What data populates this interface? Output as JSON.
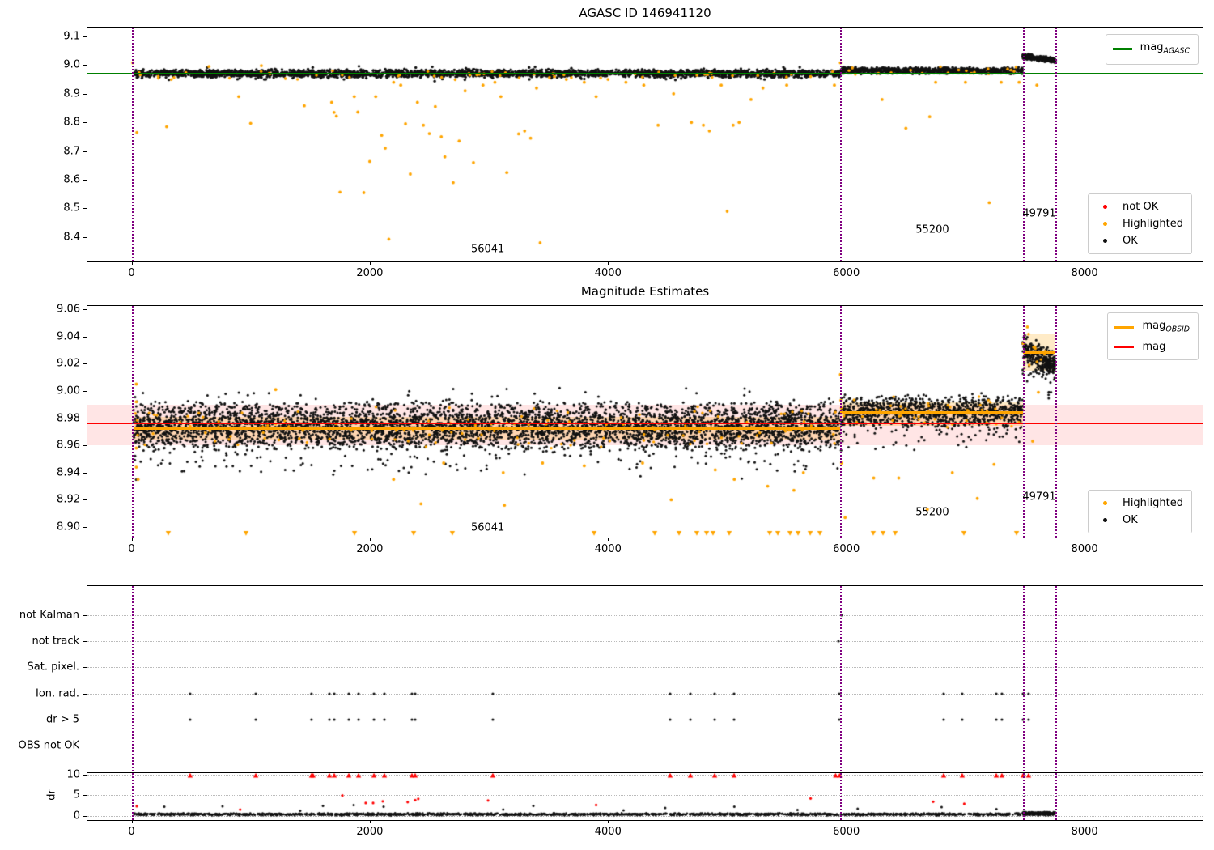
{
  "colors": {
    "ok": "#111111",
    "highlighted": "#FFA500",
    "not_ok": "#FF0000",
    "mag_agasc_line": "#008000",
    "mag_line": "#FF0000",
    "mag_obsid_line": "#FFA500",
    "obsid_boundary_line": "#800080",
    "mag_band_fill": "rgba(255,0,0,0.10)",
    "obsid_band_fill": "rgba(255,165,0,0.22)",
    "grid": "#BBBBBB",
    "separator": "#000000"
  },
  "obsid_boundaries": [
    0,
    5950,
    7480,
    7755
  ],
  "chart_data": [
    {
      "type": "scatter",
      "title": "AGASC ID 146941120",
      "xlim": [
        -370,
        8991
      ],
      "ylim": [
        8.315,
        9.131
      ],
      "xticks": [
        0,
        2000,
        4000,
        6000,
        8000
      ],
      "yticks": [
        9.1,
        9.0,
        8.9,
        8.8,
        8.7,
        8.6,
        8.5,
        8.4
      ],
      "mag_agasc": 8.971,
      "legend_line": {
        "items": [
          {
            "marker": "line",
            "color": "#008000",
            "main": "mag",
            "sub": "AGASC"
          }
        ]
      },
      "legend_points": {
        "items": [
          {
            "marker": "dot",
            "color": "#FF0000",
            "main": "not OK",
            "sub": ""
          },
          {
            "marker": "dot",
            "color": "#FFA500",
            "main": "Highlighted",
            "sub": ""
          },
          {
            "marker": "dot",
            "color": "#111111",
            "main": "OK",
            "sub": ""
          }
        ]
      },
      "annotations": [
        {
          "text": "56041",
          "x": 2990,
          "y": 8.357
        },
        {
          "text": "55200",
          "x": 6722,
          "y": 8.425
        },
        {
          "text": "49791",
          "x": 7619,
          "y": 8.482
        }
      ],
      "ok_bands": [
        {
          "x0": 15,
          "x1": 5950,
          "n": 2400,
          "y": 8.9705,
          "spread": 0.015,
          "slope": 0
        },
        {
          "x0": 15,
          "x1": 5950,
          "n": 260,
          "y": 8.9705,
          "spread": 0.027,
          "slope": 0
        },
        {
          "x0": 5950,
          "x1": 7480,
          "n": 760,
          "y": 8.981,
          "spread": 0.013,
          "slope": 0
        },
        {
          "x0": 7480,
          "x1": 7755,
          "n": 240,
          "y": 9.031,
          "spread": 0.011,
          "slope": -0.014
        }
      ],
      "highlighted_bands": [
        {
          "x0": 15,
          "x1": 5950,
          "n": 55,
          "y": 8.967,
          "spread": 0.022,
          "slope": 0
        },
        {
          "x0": 5950,
          "x1": 7480,
          "n": 18,
          "y": 8.978,
          "spread": 0.02,
          "slope": 0
        }
      ],
      "highlighted_points": [
        [
          10,
          9.008
        ],
        [
          45,
          8.765
        ],
        [
          295,
          8.785
        ],
        [
          650,
          8.995
        ],
        [
          900,
          8.89
        ],
        [
          1000,
          8.797
        ],
        [
          1090,
          8.998
        ],
        [
          1450,
          8.858
        ],
        [
          1680,
          8.87
        ],
        [
          1700,
          8.835
        ],
        [
          1720,
          8.822
        ],
        [
          1750,
          8.557
        ],
        [
          1870,
          8.89
        ],
        [
          1900,
          8.836
        ],
        [
          1950,
          8.555
        ],
        [
          2000,
          8.664
        ],
        [
          2050,
          8.89
        ],
        [
          2100,
          8.755
        ],
        [
          2130,
          8.71
        ],
        [
          2160,
          8.393
        ],
        [
          2200,
          8.94
        ],
        [
          2260,
          8.93
        ],
        [
          2300,
          8.795
        ],
        [
          2340,
          8.62
        ],
        [
          2400,
          8.87
        ],
        [
          2450,
          8.79
        ],
        [
          2500,
          8.761
        ],
        [
          2550,
          8.855
        ],
        [
          2600,
          8.75
        ],
        [
          2630,
          8.68
        ],
        [
          2700,
          8.59
        ],
        [
          2750,
          8.735
        ],
        [
          2800,
          8.91
        ],
        [
          2870,
          8.66
        ],
        [
          2950,
          8.93
        ],
        [
          3050,
          8.94
        ],
        [
          3100,
          8.89
        ],
        [
          3150,
          8.625
        ],
        [
          3250,
          8.76
        ],
        [
          3300,
          8.77
        ],
        [
          3350,
          8.745
        ],
        [
          3400,
          8.92
        ],
        [
          3430,
          8.38
        ],
        [
          3550,
          8.96
        ],
        [
          3650,
          8.95
        ],
        [
          3800,
          8.94
        ],
        [
          3900,
          8.89
        ],
        [
          4000,
          8.95
        ],
        [
          4150,
          8.94
        ],
        [
          4300,
          8.93
        ],
        [
          4420,
          8.79
        ],
        [
          4550,
          8.9
        ],
        [
          4700,
          8.8
        ],
        [
          4800,
          8.79
        ],
        [
          4850,
          8.77
        ],
        [
          4950,
          8.93
        ],
        [
          5000,
          8.49
        ],
        [
          5050,
          8.79
        ],
        [
          5100,
          8.8
        ],
        [
          5200,
          8.88
        ],
        [
          5300,
          8.92
        ],
        [
          5500,
          8.93
        ],
        [
          5700,
          8.96
        ],
        [
          5900,
          8.93
        ],
        [
          5950,
          9.008
        ],
        [
          6050,
          8.99
        ],
        [
          6300,
          8.88
        ],
        [
          6500,
          8.78
        ],
        [
          6700,
          8.82
        ],
        [
          6750,
          8.94
        ],
        [
          7000,
          8.94
        ],
        [
          7200,
          8.52
        ],
        [
          7300,
          8.94
        ],
        [
          7450,
          8.94
        ],
        [
          7600,
          8.93
        ]
      ],
      "not_ok_points": []
    },
    {
      "type": "scatter",
      "title": "Magnitude Estimates",
      "xlim": [
        -370,
        8991
      ],
      "ylim": [
        8.8923,
        9.0624
      ],
      "xticks": [
        0,
        2000,
        4000,
        6000,
        8000
      ],
      "yticks": [
        9.06,
        9.04,
        9.02,
        9.0,
        8.98,
        8.96,
        8.94,
        8.92,
        8.9
      ],
      "mag": 8.976,
      "mag_band": [
        8.96,
        8.99
      ],
      "obsid_segments": [
        {
          "x0": 15,
          "x1": 5950,
          "mag": 8.972,
          "band": [
            8.9635,
            8.981
          ]
        },
        {
          "x0": 5950,
          "x1": 7480,
          "mag": 8.984,
          "band": [
            8.9745,
            8.9915
          ]
        },
        {
          "x0": 7480,
          "x1": 7755,
          "mag": 9.028,
          "band": [
            9.015,
            9.042
          ]
        }
      ],
      "legend_line": {
        "items": [
          {
            "marker": "line",
            "color": "#FFA500",
            "main": "mag",
            "sub": "OBSID"
          },
          {
            "marker": "line",
            "color": "#FF0000",
            "main": "mag",
            "sub": ""
          }
        ]
      },
      "legend_points": {
        "items": [
          {
            "marker": "dot",
            "color": "#FFA500",
            "main": "Highlighted",
            "sub": ""
          },
          {
            "marker": "dot",
            "color": "#111111",
            "main": "OK",
            "sub": ""
          }
        ]
      },
      "annotations": [
        {
          "text": "56041",
          "x": 2990,
          "y": 8.8994
        },
        {
          "text": "55200",
          "x": 6722,
          "y": 8.9107
        },
        {
          "text": "49791",
          "x": 7619,
          "y": 8.922
        }
      ],
      "ok_bands": [
        {
          "x0": 15,
          "x1": 5950,
          "n": 4200,
          "y": 8.974,
          "spread": 0.019,
          "slope": 0
        },
        {
          "x0": 15,
          "x1": 5950,
          "n": 500,
          "y": 8.972,
          "spread": 0.032,
          "slope": 0
        },
        {
          "x0": 15,
          "x1": 5950,
          "n": 60,
          "y": 8.945,
          "spread": 0.012,
          "slope": 0
        },
        {
          "x0": 5950,
          "x1": 7480,
          "n": 950,
          "y": 8.985,
          "spread": 0.013,
          "slope": 0
        },
        {
          "x0": 5950,
          "x1": 7480,
          "n": 120,
          "y": 8.975,
          "spread": 0.024,
          "slope": 0
        },
        {
          "x0": 7480,
          "x1": 7755,
          "n": 260,
          "y": 9.031,
          "spread": 0.012,
          "slope": -0.012
        },
        {
          "x0": 7480,
          "x1": 7755,
          "n": 40,
          "y": 9.02,
          "spread": 0.022,
          "slope": -0.01
        }
      ],
      "highlighted_bands": [
        {
          "x0": 15,
          "x1": 5950,
          "n": 140,
          "y": 8.972,
          "spread": 0.018,
          "slope": 0
        },
        {
          "x0": 5950,
          "x1": 7480,
          "n": 45,
          "y": 8.985,
          "spread": 0.014,
          "slope": 0
        },
        {
          "x0": 7480,
          "x1": 7755,
          "n": 12,
          "y": 9.03,
          "spread": 0.014,
          "slope": 0
        }
      ],
      "highlighted_points": [
        [
          40,
          9.005
        ],
        [
          40,
          8.992
        ],
        [
          40,
          8.958
        ],
        [
          40,
          8.944
        ],
        [
          55,
          8.935
        ],
        [
          1210,
          9.001
        ],
        [
          2200,
          8.935
        ],
        [
          2430,
          8.917
        ],
        [
          2620,
          8.947
        ],
        [
          3120,
          8.94
        ],
        [
          3130,
          8.916
        ],
        [
          3450,
          8.947
        ],
        [
          3800,
          8.945
        ],
        [
          4290,
          8.947
        ],
        [
          4530,
          8.92
        ],
        [
          4900,
          8.942
        ],
        [
          5060,
          8.935
        ],
        [
          5340,
          8.93
        ],
        [
          5560,
          8.927
        ],
        [
          5640,
          8.94
        ],
        [
          5950,
          9.012
        ],
        [
          5960,
          8.947
        ],
        [
          5990,
          8.907
        ],
        [
          6230,
          8.936
        ],
        [
          6440,
          8.936
        ],
        [
          6680,
          8.913
        ],
        [
          6890,
          8.94
        ],
        [
          7100,
          8.921
        ],
        [
          7240,
          8.946
        ],
        [
          7520,
          9.047
        ],
        [
          7612,
          8.999
        ],
        [
          7564,
          8.963
        ]
      ],
      "clipped_low_x": [
        309,
        961,
        1872,
        2368,
        2693,
        3883,
        4392,
        4596,
        4745,
        4827,
        4881,
        5017,
        5357,
        5425,
        5527,
        5595,
        5697,
        5778,
        6226,
        6308,
        6410,
        6987,
        7429
      ],
      "clip_low_y": 8.8955
    },
    {
      "type": "flags",
      "rows": [
        {
          "label": "not Kalman",
          "points": [
            5960
          ]
        },
        {
          "label": "not track",
          "points": [
            5934
          ]
        },
        {
          "label": "Sat. pixel.",
          "points": []
        },
        {
          "label": "Ion. rad.",
          "points": [
            492,
            1043,
            1511,
            1661,
            1702,
            1824,
            1906,
            2035,
            2123,
            2354,
            2381,
            3033,
            4521,
            4691,
            4895,
            5058,
            5941,
            6817,
            6973,
            7259,
            7306,
            7483,
            7530
          ]
        },
        {
          "label": "dr > 5",
          "points": [
            492,
            1043,
            1511,
            1661,
            1702,
            1824,
            1906,
            2035,
            2123,
            2354,
            2381,
            3033,
            4521,
            4691,
            4895,
            5058,
            5941,
            6817,
            6973,
            7259,
            7306,
            7483,
            7530
          ]
        },
        {
          "label": "OBS not OK",
          "points": []
        }
      ],
      "dr": {
        "ylabel": "dr",
        "ticks": [
          10,
          5,
          0
        ],
        "separator": 10.5,
        "clip_value": 9.75,
        "clipped_x": [
          492,
          1043,
          1511,
          1524,
          1661,
          1702,
          1824,
          1906,
          2035,
          2123,
          2354,
          2381,
          3033,
          4521,
          4691,
          4895,
          5058,
          5910,
          5944,
          6817,
          6973,
          7259,
          7306,
          7483,
          7530
        ],
        "red_points": [
          [
            44,
            2.3
          ],
          [
            912,
            1.5
          ],
          [
            1770,
            4.9
          ],
          [
            1966,
            3.1
          ],
          [
            2028,
            3.1
          ],
          [
            2109,
            3.5
          ],
          [
            2318,
            3.3
          ],
          [
            2381,
            3.8
          ],
          [
            2407,
            4.1
          ],
          [
            2993,
            3.7
          ],
          [
            3900,
            2.6
          ],
          [
            5700,
            4.2
          ],
          [
            6729,
            3.4
          ],
          [
            6990,
            2.9
          ]
        ],
        "black_points": [
          [
            275,
            2.2
          ],
          [
            764,
            2.3
          ],
          [
            1416,
            1.2
          ],
          [
            1607,
            2.4
          ],
          [
            1865,
            2.6
          ],
          [
            2116,
            2.2
          ],
          [
            3120,
            1.5
          ],
          [
            3373,
            2.4
          ],
          [
            4130,
            1.3
          ],
          [
            4480,
            1.9
          ],
          [
            5060,
            2.2
          ],
          [
            5590,
            1.4
          ],
          [
            6095,
            1.7
          ],
          [
            6800,
            2.1
          ],
          [
            7260,
            1.6
          ]
        ],
        "bands": [
          {
            "x0": 15,
            "x1": 7755,
            "n": 1900,
            "y": 0.35,
            "spread": 0.33,
            "slope": 0
          },
          {
            "x0": 7480,
            "x1": 7755,
            "n": 160,
            "y": 0.6,
            "spread": 0.45,
            "slope": 0
          }
        ]
      },
      "xticks": [
        0,
        2000,
        4000,
        6000,
        8000
      ]
    }
  ]
}
